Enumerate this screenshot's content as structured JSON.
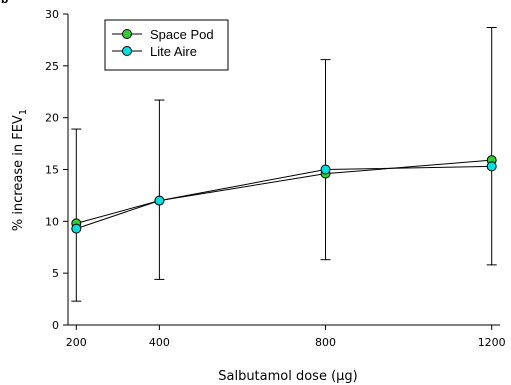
{
  "chart_data": {
    "type": "line",
    "title": "",
    "panel_label": "b",
    "xlabel": "Salbutamol dose (µg)",
    "ylabel": "% increase in FEV",
    "ylabel_subscript": "1",
    "x": [
      200,
      400,
      800,
      1200
    ],
    "xticks": [
      200,
      400,
      800,
      1200
    ],
    "xlim": [
      180,
      1220
    ],
    "yticks": [
      0,
      5,
      10,
      15,
      20,
      25,
      30
    ],
    "ylim": [
      0,
      30
    ],
    "legend_position": "top-left",
    "series": [
      {
        "name": "Space Pod",
        "color": "#33cc33",
        "values": [
          9.8,
          12.0,
          14.6,
          15.9
        ]
      },
      {
        "name": "Lite Aire",
        "color": "#00e0e0",
        "values": [
          9.3,
          12.0,
          15.0,
          15.3
        ]
      }
    ],
    "error_bars": [
      {
        "x": 200,
        "low": 2.3,
        "high": 18.9
      },
      {
        "x": 400,
        "low": 4.4,
        "high": 21.7
      },
      {
        "x": 800,
        "low": 6.3,
        "high": 25.6
      },
      {
        "x": 1200,
        "low": 5.8,
        "high": 28.7
      }
    ]
  }
}
